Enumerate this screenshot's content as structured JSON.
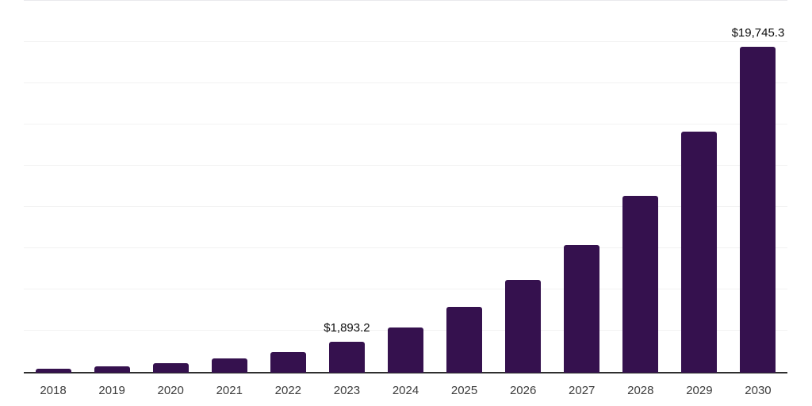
{
  "chart_data": {
    "type": "bar",
    "title": "",
    "xlabel": "",
    "ylabel": "",
    "categories": [
      "2018",
      "2019",
      "2020",
      "2021",
      "2022",
      "2023",
      "2024",
      "2025",
      "2026",
      "2027",
      "2028",
      "2029",
      "2030"
    ],
    "values": [
      240,
      385,
      580,
      855,
      1250,
      1893.2,
      2740,
      3990,
      5620,
      7740,
      10720,
      14620,
      19745.3
    ],
    "data_labels": {
      "2023": "$1,893.2",
      "2030": "$19,745.3"
    },
    "ylim": [
      0,
      22500
    ],
    "gridline_step": 2500,
    "grid": true,
    "legend": false,
    "y_axis_tick_labels_visible": false,
    "colors": {
      "bar": "#35114E",
      "gridline": "#f2f2f2",
      "top_gridline": "#e9e9ed",
      "axis_line": "#2f2f2f",
      "data_label": "#0d0d0d",
      "tick_label": "#3c3c3c",
      "background": "#ffffff"
    }
  }
}
